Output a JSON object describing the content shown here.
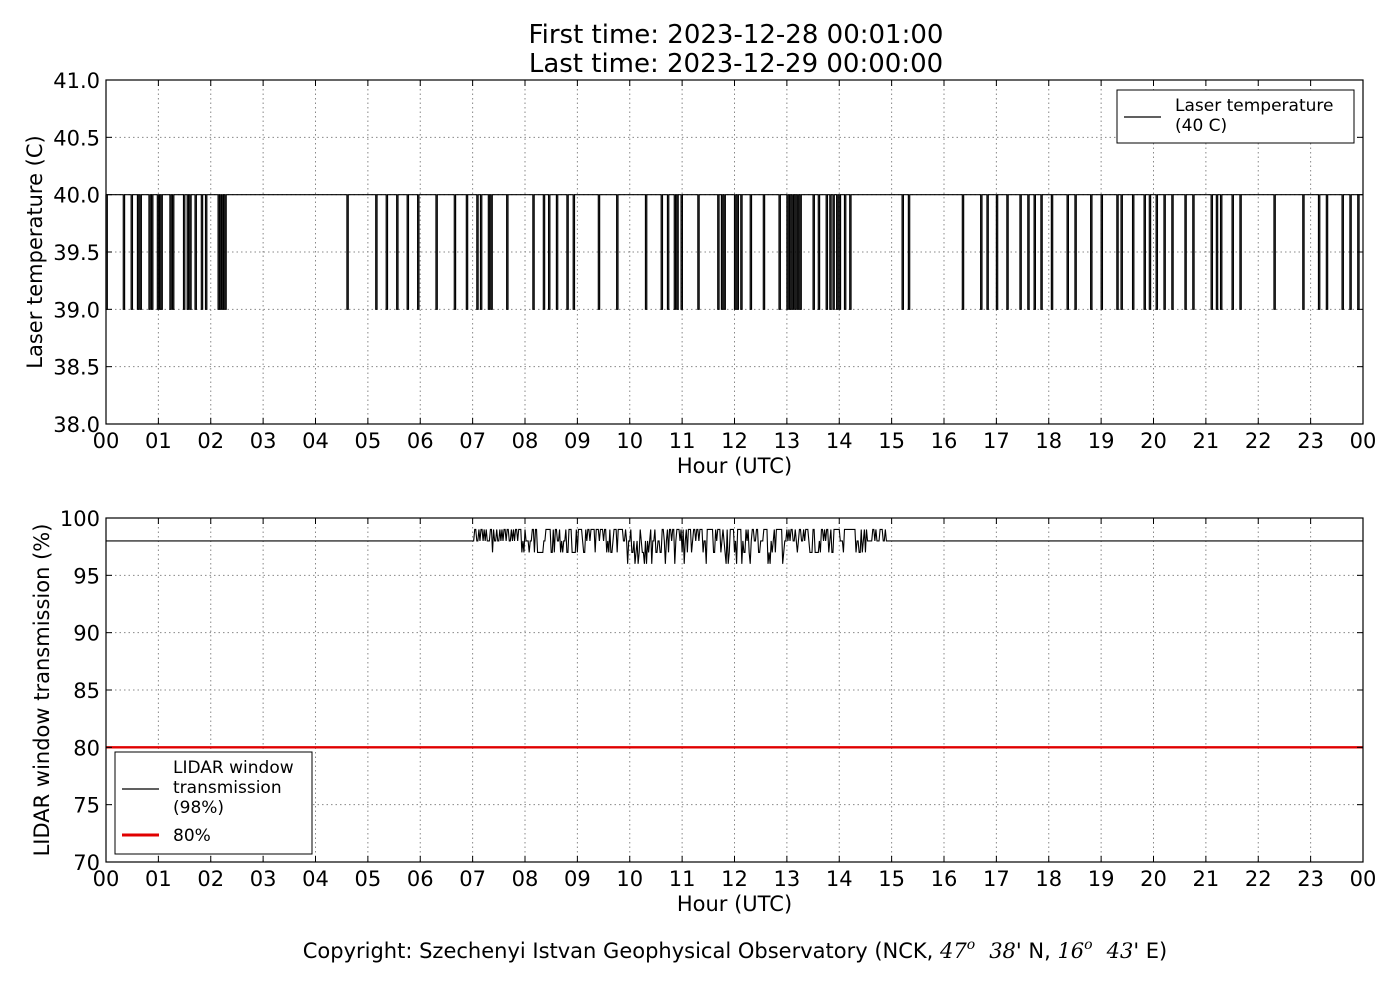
{
  "title_lines": [
    "First time: 2023-12-28 00:01:00",
    "Last time: 2023-12-29 00:00:00"
  ],
  "copyright": {
    "prefix": "Copyright: Szechenyi Istvan Geophysical Observatory (NCK, ",
    "lat_deg": "47",
    "lat_deg_sup": "o",
    "lat_min": "38",
    "lat_suffix": "' N, ",
    "lon_deg": "16",
    "lon_deg_sup": "o",
    "lon_min": "43",
    "lon_suffix": "' E)"
  },
  "colors": {
    "line": "#000000",
    "threshold": "#e00000",
    "grid": "#888888"
  },
  "chart_data": [
    {
      "type": "line",
      "xlabel": "Hour (UTC)",
      "ylabel": "Laser temperature (C)",
      "xlim": [
        0,
        24
      ],
      "ylim": [
        38.0,
        41.0
      ],
      "x_tick_labels": [
        "00",
        "01",
        "02",
        "03",
        "04",
        "05",
        "06",
        "07",
        "08",
        "09",
        "10",
        "11",
        "12",
        "13",
        "14",
        "15",
        "16",
        "17",
        "18",
        "19",
        "20",
        "21",
        "22",
        "23",
        "00"
      ],
      "y_ticks": [
        38.0,
        38.5,
        39.0,
        39.5,
        40.0,
        40.5,
        41.0
      ],
      "y_tick_labels": [
        "38.0",
        "38.5",
        "39.0",
        "39.5",
        "40.0",
        "40.5",
        "41.0"
      ],
      "grid": true,
      "legend_position": "top-right",
      "baseline": 40.0,
      "series": [
        {
          "name": "Laser temperature\n(40 C)",
          "color": "#000000",
          "baseline": 40.0,
          "dip_value": 39.0,
          "dip_hours": [
            0.0,
            0.33,
            0.48,
            0.6,
            0.65,
            0.82,
            0.87,
            0.98,
            1.02,
            1.05,
            1.22,
            1.27,
            1.48,
            1.55,
            1.6,
            1.7,
            1.82,
            1.9,
            2.14,
            2.18,
            2.22,
            2.27,
            4.6,
            5.15,
            5.35,
            5.55,
            5.75,
            5.95,
            6.3,
            6.65,
            6.88,
            7.08,
            7.15,
            7.3,
            7.35,
            7.65,
            8.15,
            8.35,
            8.45,
            8.6,
            8.8,
            8.92,
            9.4,
            9.75,
            10.3,
            10.6,
            10.72,
            10.85,
            10.9,
            10.98,
            11.3,
            11.68,
            11.75,
            11.8,
            12.0,
            12.05,
            12.12,
            12.3,
            12.55,
            12.85,
            13.0,
            13.05,
            13.1,
            13.15,
            13.2,
            13.25,
            13.5,
            13.6,
            13.75,
            13.82,
            13.88,
            13.95,
            14.0,
            14.1,
            14.2,
            15.2,
            15.32,
            16.35,
            16.7,
            16.82,
            17.0,
            17.2,
            17.45,
            17.6,
            17.72,
            17.85,
            18.05,
            18.35,
            18.5,
            18.8,
            19.0,
            19.3,
            19.38,
            19.6,
            19.82,
            19.92,
            20.05,
            20.2,
            20.35,
            20.6,
            20.75,
            21.1,
            21.2,
            21.28,
            21.5,
            21.65,
            22.3,
            22.85,
            23.15,
            23.3,
            23.6,
            23.75,
            23.9
          ]
        }
      ]
    },
    {
      "type": "line",
      "xlabel": "Hour (UTC)",
      "ylabel": "LIDAR window transmission (%)",
      "xlim": [
        0,
        24
      ],
      "ylim": [
        70,
        100
      ],
      "x_tick_labels": [
        "00",
        "01",
        "02",
        "03",
        "04",
        "05",
        "06",
        "07",
        "08",
        "09",
        "10",
        "11",
        "12",
        "13",
        "14",
        "15",
        "16",
        "17",
        "18",
        "19",
        "20",
        "21",
        "22",
        "23",
        "00"
      ],
      "y_ticks": [
        70,
        75,
        80,
        85,
        90,
        95,
        100
      ],
      "y_tick_labels": [
        "70",
        "75",
        "80",
        "85",
        "90",
        "95",
        "100"
      ],
      "grid": true,
      "legend_position": "lower-left",
      "series": [
        {
          "name": "LIDAR window\ntransmission\n(98%)",
          "color": "#000000",
          "baseline": 98,
          "noisy_range": [
            7.0,
            14.95
          ],
          "noise_values": [
            97,
            96,
            99,
            97,
            98,
            99,
            96
          ]
        },
        {
          "name": "80%",
          "color": "#e00000",
          "constant": 80
        }
      ]
    }
  ]
}
